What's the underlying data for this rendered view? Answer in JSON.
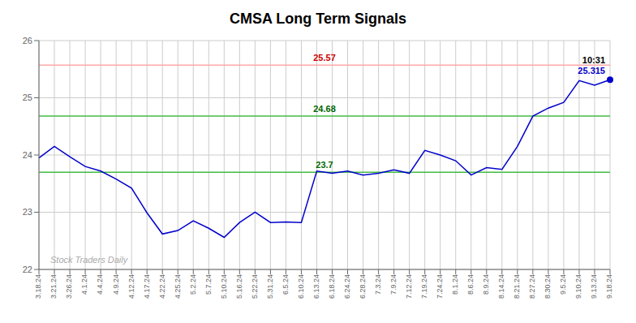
{
  "chart_data": {
    "type": "line",
    "title": "CMSA Long Term Signals",
    "categories": [
      "3.18.24",
      "3.21.24",
      "3.26.24",
      "4.1.24",
      "4.4.24",
      "4.9.24",
      "4.12.24",
      "4.17.24",
      "4.22.24",
      "4.25.24",
      "5.2.24",
      "5.7.24",
      "5.10.24",
      "5.16.24",
      "5.22.24",
      "5.31.24",
      "6.5.24",
      "6.10.24",
      "6.13.24",
      "6.18.24",
      "6.24.24",
      "6.28.24",
      "7.3.24",
      "7.9.24",
      "7.12.24",
      "7.19.24",
      "7.24.24",
      "8.1.24",
      "8.6.24",
      "8.9.24",
      "8.14.24",
      "8.21.24",
      "8.27.24",
      "8.30.24",
      "9.5.24",
      "9.10.24",
      "9.13.24",
      "9.18.24"
    ],
    "values": [
      23.95,
      24.15,
      23.97,
      23.8,
      23.72,
      23.58,
      23.42,
      22.99,
      22.62,
      22.68,
      22.85,
      22.72,
      22.56,
      22.82,
      23.0,
      22.82,
      22.83,
      22.82,
      23.72,
      23.68,
      23.72,
      23.65,
      23.68,
      23.74,
      23.68,
      24.08,
      24.0,
      23.9,
      23.65,
      23.78,
      23.75,
      24.15,
      24.68,
      24.82,
      24.92,
      25.3,
      25.22,
      25.315
    ],
    "color": "#0000cc",
    "ylim": [
      22,
      26
    ],
    "yticks": [
      22,
      23,
      24,
      25,
      26
    ],
    "grid": true,
    "hlines": [
      {
        "value": 25.57,
        "label": "25.57",
        "color": "#ffaaaa",
        "label_color": "#cc0000"
      },
      {
        "value": 24.68,
        "label": "24.68",
        "color": "#44bb44",
        "label_color": "#006600"
      },
      {
        "value": 23.7,
        "label": "23.7",
        "color": "#44bb44",
        "label_color": "#006600"
      }
    ],
    "time_label": "10:31",
    "price_label": "25.315",
    "watermark": {
      "text": "Stock Traders Daily",
      "color": "#aaaaaa"
    }
  }
}
